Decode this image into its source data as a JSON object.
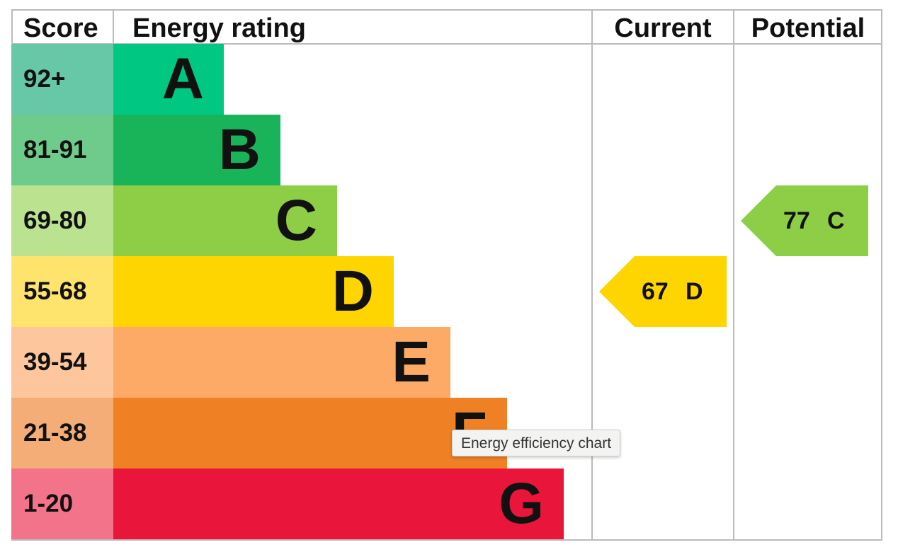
{
  "header": {
    "score": "Score",
    "rating": "Energy rating",
    "current": "Current",
    "potential": "Potential"
  },
  "rows": [
    {
      "score": "92+",
      "letter": "A",
      "score_color": "#66c8a6",
      "color": "#00c781"
    },
    {
      "score": "81-91",
      "letter": "B",
      "score_color": "#6fcb8c",
      "color": "#19b459"
    },
    {
      "score": "69-80",
      "letter": "C",
      "score_color": "#bae28f",
      "color": "#8dce46"
    },
    {
      "score": "55-68",
      "letter": "D",
      "score_color": "#fee46c",
      "color": "#ffd500"
    },
    {
      "score": "39-54",
      "letter": "E",
      "score_color": "#fec69c",
      "color": "#fcaa65"
    },
    {
      "score": "21-38",
      "letter": "F",
      "score_color": "#f4ad76",
      "color": "#ef8023"
    },
    {
      "score": "1-20",
      "letter": "G",
      "score_color": "#f2738a",
      "color": "#e9153b"
    }
  ],
  "current": {
    "score": "67",
    "letter": "D"
  },
  "potential": {
    "score": "77",
    "letter": "C"
  },
  "tooltip": "Energy efficiency chart"
}
